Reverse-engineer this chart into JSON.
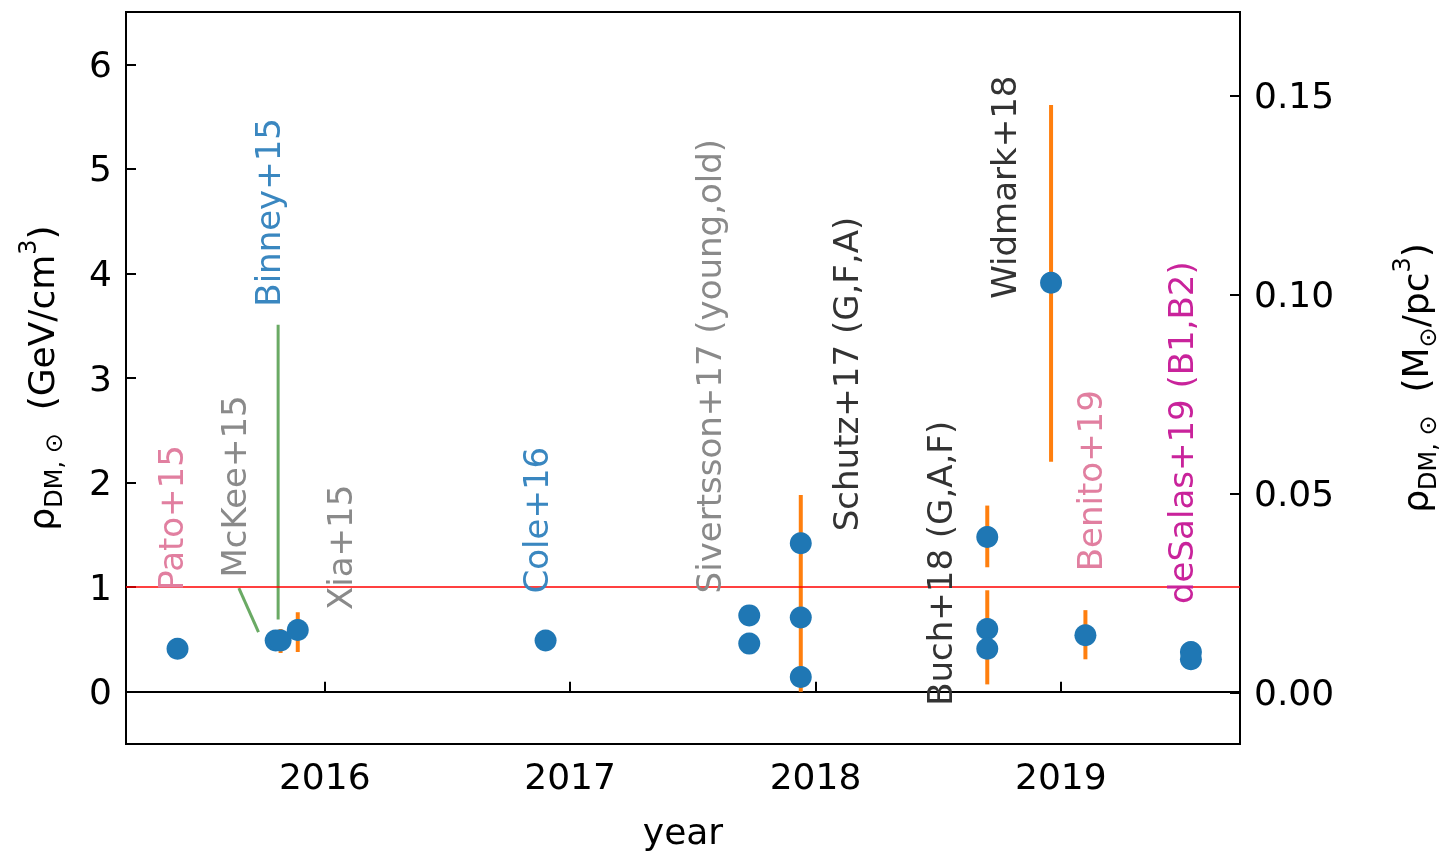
{
  "chart_data": {
    "type": "scatter",
    "xlabel": "year",
    "ylabel": "ρ$_{DM, ⊙}$  (GeV/cm$^{3}$)",
    "y2label": "ρ$_{DM, ⊙}$  (M$_{⊙}$/pc$^{3}$)",
    "xlim": [
      2015.19,
      2019.73
    ],
    "xticks": [
      2016,
      2017,
      2018,
      2019
    ],
    "ylim": [
      -0.5,
      6.5
    ],
    "yticks": [
      0,
      1,
      2,
      3,
      4,
      5,
      6
    ],
    "y2lim": [
      -0.013,
      0.171
    ],
    "y2ticks": [
      {
        "value": 0,
        "label": "0.00"
      },
      0.05,
      {
        "value": 0.1,
        "label": "0.10"
      },
      0.15
    ],
    "grid": false,
    "marker": "circle",
    "series": [
      {
        "color": "#1f77b4",
        "x": [
          2015.4,
          2015.8,
          2015.82,
          2015.89,
          2016.9,
          2017.73,
          2017.73,
          2017.94,
          2017.94,
          2017.94,
          2018.7,
          2018.7,
          2018.7,
          2018.96,
          2019.1,
          2019.53,
          2019.53
        ],
        "values": [
          0.41,
          0.49,
          0.49,
          0.59,
          0.49,
          0.73,
          0.46,
          1.42,
          0.71,
          0.14,
          1.48,
          0.6,
          0.41,
          3.91,
          0.54,
          0.38,
          0.31
        ],
        "errors": [
          null,
          null,
          [
            0.37,
            0.6
          ],
          [
            0.38,
            0.76
          ],
          null,
          null,
          null,
          null,
          [
            0.0,
            1.88
          ],
          null,
          [
            1.19,
            1.78
          ],
          [
            0.07,
            0.97
          ],
          null,
          [
            2.2,
            5.61
          ],
          [
            0.31,
            0.78
          ],
          null,
          null
        ]
      },
      {
        "type": "line",
        "color": "#6aaa64",
        "marker": "none",
        "x": [
          2015.65,
          2015.73
        ],
        "values": [
          0.99,
          0.57
        ]
      },
      {
        "type": "line",
        "color": "#6aaa64",
        "marker": "none",
        "x": [
          2015.81,
          2015.81
        ],
        "values": [
          3.51,
          0.69
        ]
      }
    ],
    "ref_lines": [
      {
        "axis": "y",
        "value": 1,
        "color": "#ff0000"
      }
    ],
    "annotations": [
      {
        "text": "Pato+15",
        "x": 2015.4,
        "y": 0.41
      },
      {
        "text": "McKee+15",
        "x": 2015.8,
        "y": 0.49
      },
      {
        "text": "Binney+15",
        "x": 2015.81,
        "y": 3.51
      },
      {
        "text": "Xia+15",
        "x": 2015.89,
        "y": 0.59
      },
      {
        "text": "Cole+16",
        "x": 2016.9,
        "y": 0.49
      },
      {
        "text": "Sivertsson+17 (young,old)",
        "x": 2017.73,
        "y": 0.73
      },
      {
        "text": "Schutz+17 (G,F,A)",
        "x": 2017.94,
        "y": 1.42
      },
      {
        "text": "Buch+18 (G,A,F)",
        "x": 2018.7,
        "y": 0.41
      },
      {
        "text": "Widmark+18",
        "x": 2018.96,
        "y": 3.91
      },
      {
        "text": "Benito+19",
        "x": 2019.1,
        "y": 0.54
      },
      {
        "text": "deSalas+19 (B1,B2)",
        "x": 2019.53,
        "y": 0.38
      }
    ]
  }
}
